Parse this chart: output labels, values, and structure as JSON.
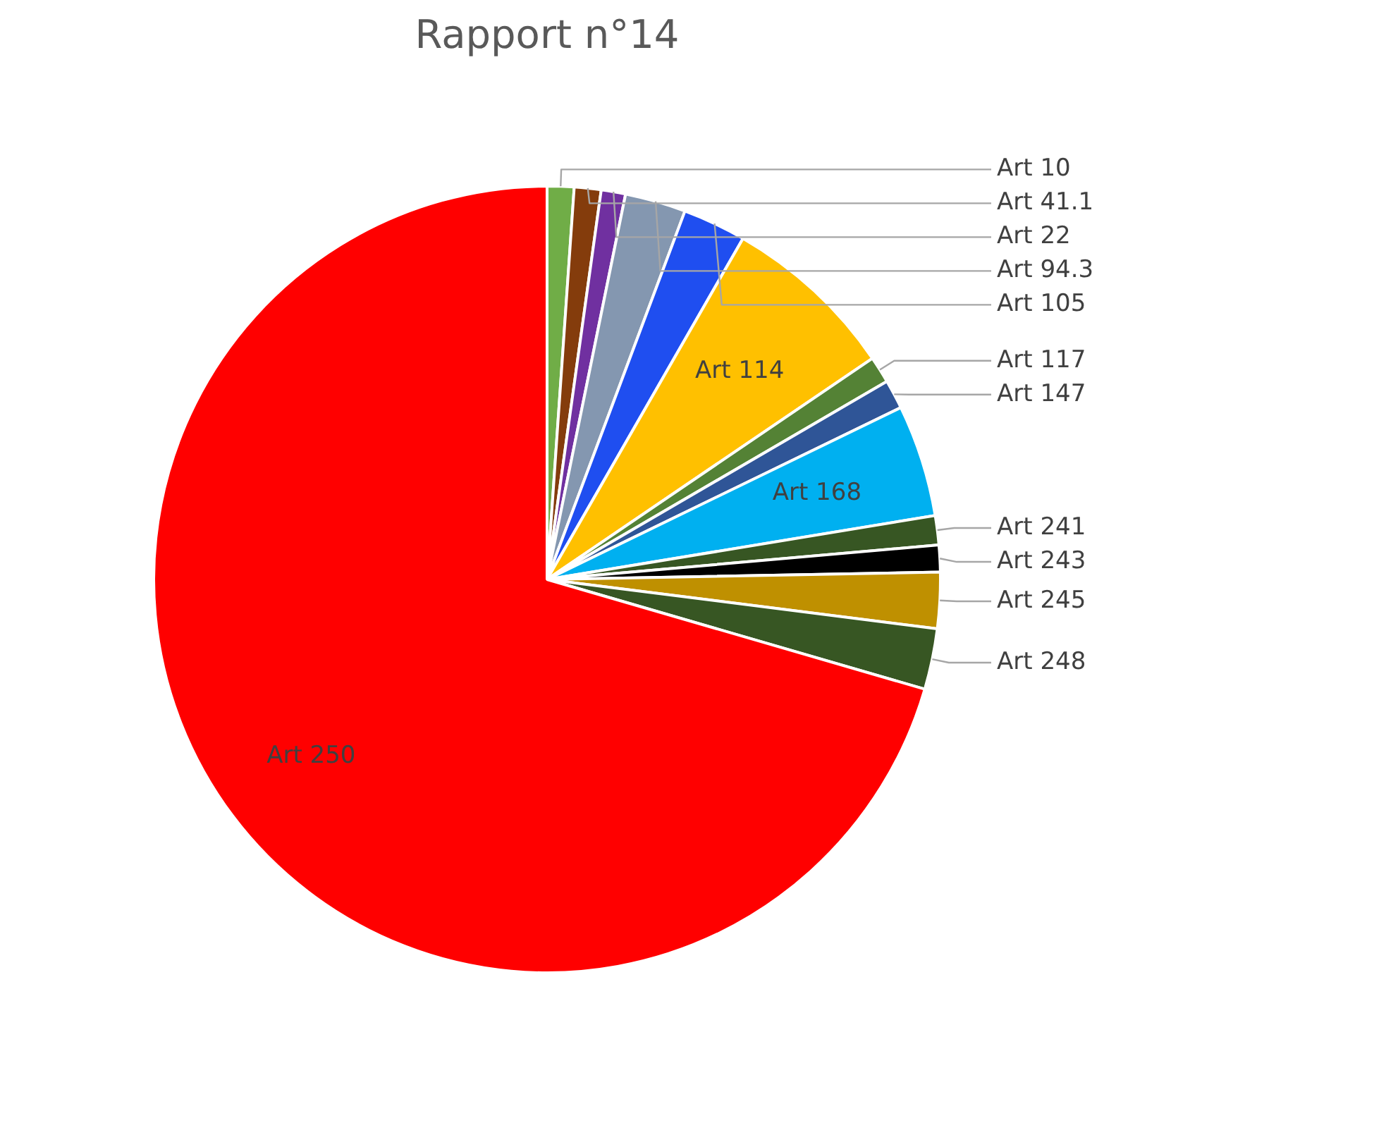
{
  "chart_data": {
    "type": "pie",
    "title": "Rapport n°14",
    "categories": [
      "Art 10",
      "Art 41.1",
      "Art 22",
      "Art 94.3",
      "Art 105",
      "Art 114",
      "Art 117",
      "Art 147",
      "Art 168",
      "Art 241",
      "Art 243",
      "Art 245",
      "Art 248",
      "Art 250"
    ],
    "values": [
      1.1,
      1.1,
      1.0,
      2.5,
      2.6,
      7.2,
      1.1,
      1.2,
      4.6,
      1.2,
      1.1,
      2.3,
      2.5,
      70.5
    ],
    "colors": [
      "#70ad47",
      "#843c0c",
      "#7030a0",
      "#8497b0",
      "#1f4ef0",
      "#ffc000",
      "#548235",
      "#2f5597",
      "#00b0f0",
      "#375623",
      "#000000",
      "#bf9000",
      "#375623",
      "#ff0000"
    ],
    "legend": false
  }
}
